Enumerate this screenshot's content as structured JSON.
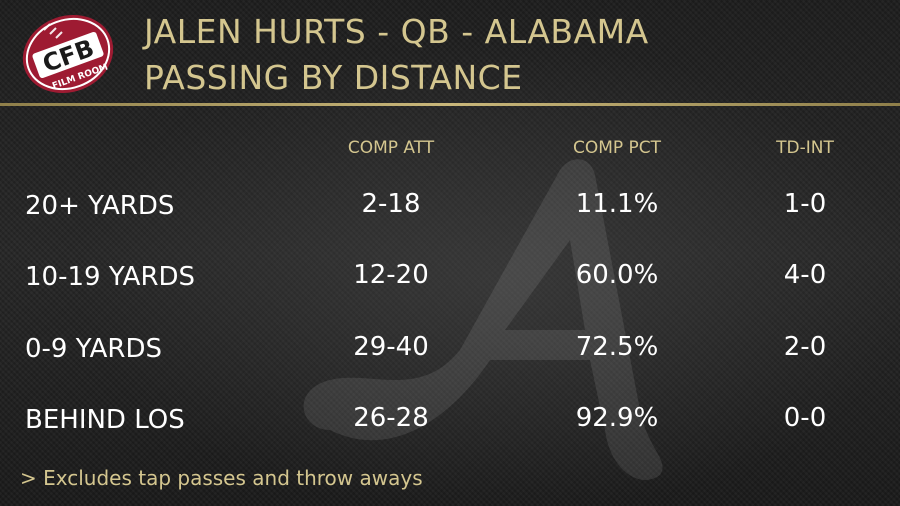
{
  "logo": {
    "main_text": "CFB",
    "sub_text": "FILM ROOM"
  },
  "title": {
    "line1": "JALEN HURTS - QB - ALABAMA",
    "line2": "PASSING BY DISTANCE"
  },
  "columns": [
    "COMP ATT",
    "COMP PCT",
    "TD-INT"
  ],
  "rows": [
    {
      "label": "20+ YARDS",
      "comp_att": "2-18",
      "comp_pct": "11.1%",
      "td_int": "1-0"
    },
    {
      "label": "10-19 YARDS",
      "comp_att": "12-20",
      "comp_pct": "60.0%",
      "td_int": "4-0"
    },
    {
      "label": "0-9 YARDS",
      "comp_att": "29-40",
      "comp_pct": "72.5%",
      "td_int": "2-0"
    },
    {
      "label": "BEHIND LOS",
      "comp_att": "26-28",
      "comp_pct": "92.9%",
      "td_int": "0-0"
    }
  ],
  "footnote": "> Excludes tap passes and throw aways",
  "colors": {
    "accent_gold": "#d4c68f",
    "logo_red": "#9e1b32",
    "background": "#1f1f1f",
    "text": "#ffffff"
  }
}
